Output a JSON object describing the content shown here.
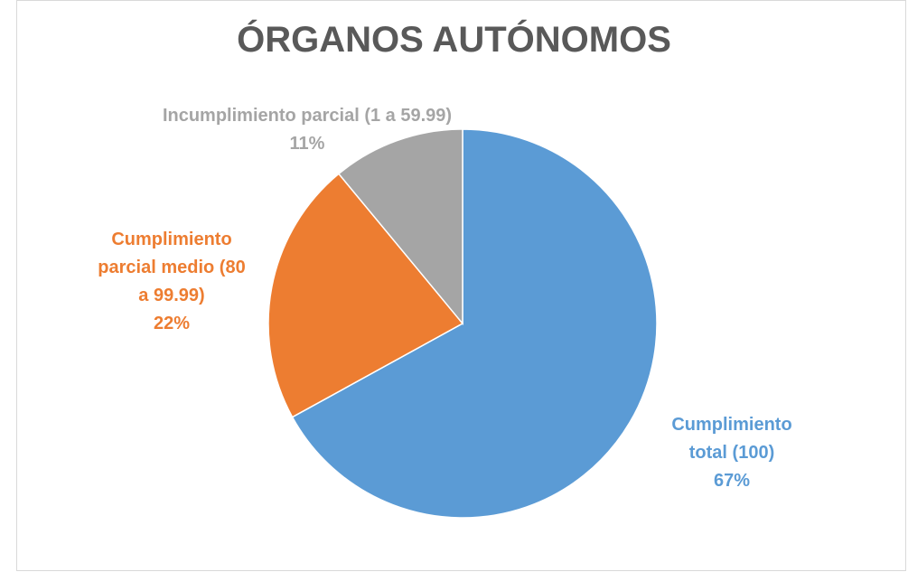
{
  "chart_data": {
    "type": "pie",
    "title": "ÓRGANOS AUTÓNOMOS",
    "categories": [
      "Cumplimiento total (100)",
      "Cumplimiento parcial medio (80 a 99.99)",
      "Incumplimiento parcial (1 a 59.99)"
    ],
    "values": [
      67,
      22,
      11
    ],
    "value_labels": [
      "67%",
      "22%",
      "11%"
    ],
    "colors": [
      "#5b9bd5",
      "#ed7d31",
      "#a5a5a5"
    ]
  }
}
